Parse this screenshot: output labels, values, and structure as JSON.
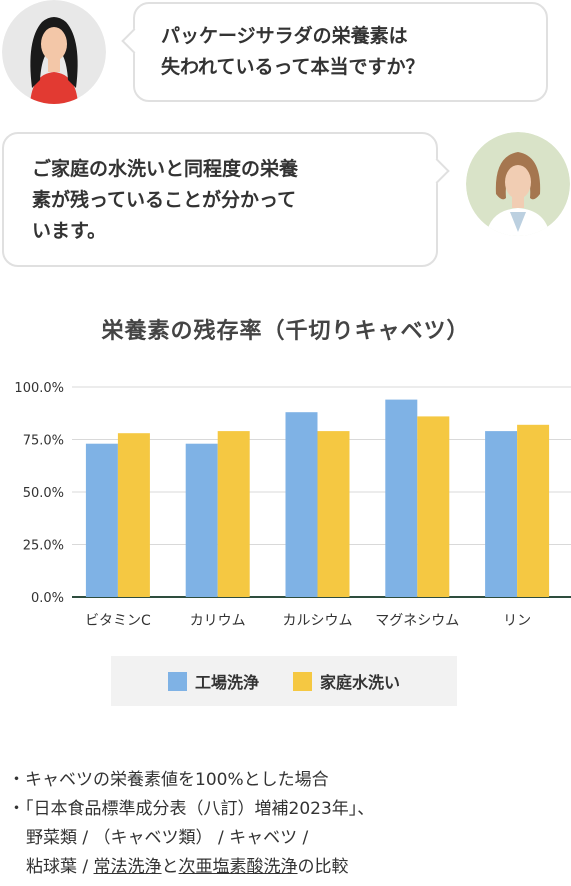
{
  "conversation": {
    "question": {
      "line1": "パッケージサラダの栄養素は",
      "line2": "失われているって本当ですか？"
    },
    "answer": {
      "line1": "ご家庭の水洗いと同程度の栄養",
      "line2": "素が残っていることが分かって",
      "line3": "います。"
    }
  },
  "chart_data": {
    "type": "bar",
    "title": "栄養素の残存率（千切りキャベツ）",
    "categories": [
      "ビタミンC",
      "カリウム",
      "カルシウム",
      "マグネシウム",
      "リン"
    ],
    "series": [
      {
        "name": "工場洗浄",
        "values": [
          73,
          73,
          88,
          94,
          79
        ],
        "color": "#7fb2e5"
      },
      {
        "name": "家庭水洗い",
        "values": [
          78,
          79,
          79,
          86,
          82
        ],
        "color": "#f5c842"
      }
    ],
    "yticks": [
      "100.0%",
      "75.0%",
      "50.0%",
      "25.0%",
      "0.0%"
    ],
    "ylim": [
      0,
      100
    ],
    "grid": true,
    "legend_position": "bottom"
  },
  "notes": {
    "line1": "・キャベツの栄養素値を100%とした場合",
    "line2": "・「日本食品標準成分表（八訂）増補2023年」、",
    "line3": "野菜類 / （キャベツ類） / キャベツ /",
    "line4_a": "粘球葉 / ",
    "line4_b": "常法洗浄",
    "line4_c": "と",
    "line4_d": "次亜塩素酸洗浄",
    "line4_e": "の比較"
  }
}
